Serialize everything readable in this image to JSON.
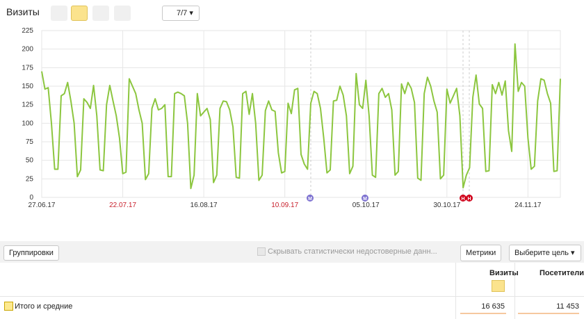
{
  "toolbar": {
    "counter": "7/7"
  },
  "chart_data": {
    "type": "line",
    "title": "Визиты",
    "categories": [
      "27.06.17",
      null,
      null,
      null,
      null,
      null,
      null,
      null,
      null,
      null,
      null,
      null,
      null,
      null,
      null,
      null,
      null,
      null,
      null,
      null,
      null,
      null,
      null,
      null,
      null,
      "22.07.17",
      null,
      null,
      null,
      null,
      null,
      null,
      null,
      null,
      null,
      null,
      null,
      null,
      null,
      null,
      null,
      null,
      null,
      null,
      null,
      null,
      null,
      null,
      null,
      null,
      "16.08.17",
      null,
      null,
      null,
      null,
      null,
      null,
      null,
      null,
      null,
      null,
      null,
      null,
      null,
      null,
      null,
      null,
      null,
      null,
      null,
      null,
      null,
      null,
      null,
      null,
      "10.09.17",
      null,
      null,
      null,
      null,
      null,
      null,
      null,
      null,
      null,
      null,
      null,
      null,
      null,
      null,
      null,
      null,
      null,
      null,
      null,
      null,
      null,
      null,
      null,
      null,
      "05.10.17",
      null,
      null,
      null,
      null,
      null,
      null,
      null,
      null,
      null,
      null,
      null,
      null,
      null,
      null,
      null,
      null,
      null,
      null,
      null,
      null,
      null,
      null,
      null,
      null,
      "30.10.17",
      null,
      null,
      null,
      null,
      null,
      null,
      null,
      null,
      null,
      null,
      null,
      null,
      null,
      null,
      null,
      null,
      null,
      null,
      null,
      null,
      null,
      null,
      null,
      null,
      "24.11.17",
      null,
      null,
      null,
      null,
      null,
      null,
      null,
      null,
      null,
      null
    ],
    "label_colors": [
      "#333333",
      null,
      null,
      null,
      null,
      null,
      null,
      null,
      null,
      null,
      null,
      null,
      null,
      null,
      null,
      null,
      null,
      null,
      null,
      null,
      null,
      null,
      null,
      null,
      null,
      "#c8202c",
      null,
      null,
      null,
      null,
      null,
      null,
      null,
      null,
      null,
      null,
      null,
      null,
      null,
      null,
      null,
      null,
      null,
      null,
      null,
      null,
      null,
      null,
      null,
      null,
      "#333333",
      null,
      null,
      null,
      null,
      null,
      null,
      null,
      null,
      null,
      null,
      null,
      null,
      null,
      null,
      null,
      null,
      null,
      null,
      null,
      null,
      null,
      null,
      null,
      null,
      "#c8202c",
      null,
      null,
      null,
      null,
      null,
      null,
      null,
      null,
      null,
      null,
      null,
      null,
      null,
      null,
      null,
      null,
      null,
      null,
      null,
      null,
      null,
      null,
      null,
      null,
      "#333333",
      null,
      null,
      null,
      null,
      null,
      null,
      null,
      null,
      null,
      null,
      null,
      null,
      null,
      null,
      null,
      null,
      null,
      null,
      null,
      null,
      null,
      null,
      null,
      null,
      "#333333",
      null,
      null,
      null,
      null,
      null,
      null,
      null,
      null,
      null,
      null,
      null,
      null,
      null,
      null,
      null,
      null,
      null,
      null,
      null,
      null,
      null,
      null,
      null,
      null,
      "#333333",
      null,
      null,
      null,
      null,
      null,
      null,
      null,
      null,
      null,
      null
    ],
    "values": [
      170,
      146,
      148,
      100,
      38,
      38,
      137,
      140,
      155,
      130,
      100,
      28,
      37,
      133,
      128,
      120,
      151,
      110,
      37,
      36,
      125,
      151,
      130,
      110,
      80,
      32,
      34,
      160,
      150,
      140,
      118,
      100,
      24,
      32,
      120,
      133,
      118,
      120,
      125,
      28,
      28,
      140,
      142,
      140,
      137,
      100,
      12,
      30,
      140,
      110,
      115,
      120,
      105,
      20,
      30,
      120,
      130,
      129,
      118,
      95,
      27,
      26,
      140,
      143,
      112,
      140,
      100,
      23,
      30,
      117,
      130,
      118,
      116,
      60,
      33,
      35,
      127,
      113,
      145,
      147,
      58,
      45,
      38,
      127,
      143,
      140,
      120,
      80,
      33,
      37,
      130,
      131,
      150,
      138,
      110,
      32,
      42,
      167,
      125,
      120,
      158,
      110,
      30,
      27,
      140,
      147,
      135,
      140,
      118,
      30,
      35,
      153,
      140,
      155,
      147,
      128,
      26,
      23,
      140,
      162,
      150,
      130,
      115,
      25,
      30,
      146,
      127,
      137,
      147,
      110,
      13,
      30,
      40,
      135,
      165,
      126,
      120,
      35,
      36,
      152,
      140,
      155,
      138,
      157,
      90,
      62,
      207,
      143,
      155,
      150,
      80,
      38,
      42,
      130,
      160,
      158,
      140,
      127,
      35,
      36,
      160
    ],
    "color": "#8cc63f",
    "ylim": [
      0,
      225
    ],
    "yticks": [
      0,
      25,
      50,
      75,
      100,
      125,
      150,
      175,
      200,
      225
    ],
    "grid": true,
    "annotations": [
      {
        "label": "М",
        "color": "#7b6fd0"
      },
      {
        "label": "М",
        "color": "#7b6fd0"
      },
      {
        "label": "Н",
        "color": "#d0021b"
      },
      {
        "label": "Н",
        "color": "#d0021b"
      }
    ]
  },
  "controls": {
    "groupings": "Группировки",
    "hide_unreliable": "Скрывать статистически недостоверные данн...",
    "metrics": "Метрики",
    "goal": "Выберите цель"
  },
  "table": {
    "columns": [
      "Визиты",
      "Посетители"
    ],
    "rows": [
      [
        "Итого и средние",
        "16 635",
        "11 453"
      ]
    ]
  }
}
